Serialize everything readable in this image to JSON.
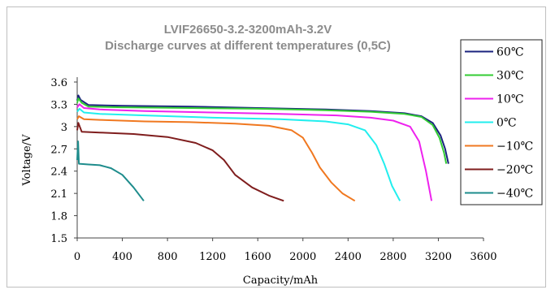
{
  "chart_data": {
    "type": "line",
    "title": "LVIF26650-3.2-3200mAh-3.2V",
    "subtitle": "Discharge curves at different temperatures (0,5C)",
    "xlabel": "Capacity/mAh",
    "ylabel": "Voltage/V",
    "xlim": [
      0,
      3600
    ],
    "ylim": [
      1.5,
      3.6
    ],
    "x_ticks": [
      "0",
      "400",
      "800",
      "1200",
      "1600",
      "2000",
      "2400",
      "2800",
      "3200",
      "3600"
    ],
    "y_ticks": [
      "1.5",
      "1.8",
      "2.1",
      "2.4",
      "2.7",
      "3",
      "3.3",
      "3.6"
    ],
    "grid": false,
    "legend_position": "right",
    "series": [
      {
        "name": "60℃",
        "color": "#1a237e",
        "points": [
          [
            0,
            3.35
          ],
          [
            10,
            3.42
          ],
          [
            30,
            3.36
          ],
          [
            100,
            3.29
          ],
          [
            400,
            3.28
          ],
          [
            1000,
            3.27
          ],
          [
            1600,
            3.25
          ],
          [
            2200,
            3.23
          ],
          [
            2600,
            3.21
          ],
          [
            2900,
            3.18
          ],
          [
            3050,
            3.14
          ],
          [
            3150,
            3.05
          ],
          [
            3220,
            2.88
          ],
          [
            3260,
            2.7
          ],
          [
            3290,
            2.5
          ]
        ]
      },
      {
        "name": "30℃",
        "color": "#33cc33",
        "points": [
          [
            0,
            3.32
          ],
          [
            10,
            3.38
          ],
          [
            40,
            3.32
          ],
          [
            100,
            3.27
          ],
          [
            400,
            3.26
          ],
          [
            1000,
            3.25
          ],
          [
            1600,
            3.24
          ],
          [
            2200,
            3.22
          ],
          [
            2600,
            3.2
          ],
          [
            2900,
            3.17
          ],
          [
            3050,
            3.13
          ],
          [
            3150,
            3.02
          ],
          [
            3210,
            2.85
          ],
          [
            3250,
            2.65
          ],
          [
            3270,
            2.5
          ]
        ]
      },
      {
        "name": "10℃",
        "color": "#ee22ee",
        "points": [
          [
            0,
            3.26
          ],
          [
            20,
            3.3
          ],
          [
            60,
            3.25
          ],
          [
            200,
            3.23
          ],
          [
            600,
            3.21
          ],
          [
            1200,
            3.19
          ],
          [
            1800,
            3.17
          ],
          [
            2300,
            3.15
          ],
          [
            2600,
            3.12
          ],
          [
            2800,
            3.08
          ],
          [
            2950,
            3.0
          ],
          [
            3030,
            2.8
          ],
          [
            3090,
            2.4
          ],
          [
            3140,
            2.0
          ]
        ]
      },
      {
        "name": "0℃",
        "color": "#22eeee",
        "points": [
          [
            0,
            3.2
          ],
          [
            20,
            3.24
          ],
          [
            60,
            3.19
          ],
          [
            200,
            3.17
          ],
          [
            600,
            3.15
          ],
          [
            1200,
            3.12
          ],
          [
            1800,
            3.1
          ],
          [
            2200,
            3.07
          ],
          [
            2400,
            3.03
          ],
          [
            2550,
            2.95
          ],
          [
            2650,
            2.75
          ],
          [
            2720,
            2.5
          ],
          [
            2790,
            2.2
          ],
          [
            2860,
            2.0
          ]
        ]
      },
      {
        "name": "−10℃",
        "color": "#f07820",
        "points": [
          [
            0,
            3.1
          ],
          [
            15,
            3.14
          ],
          [
            60,
            3.1
          ],
          [
            200,
            3.09
          ],
          [
            600,
            3.07
          ],
          [
            1000,
            3.06
          ],
          [
            1400,
            3.04
          ],
          [
            1700,
            3.01
          ],
          [
            1900,
            2.95
          ],
          [
            2000,
            2.85
          ],
          [
            2080,
            2.65
          ],
          [
            2150,
            2.45
          ],
          [
            2250,
            2.25
          ],
          [
            2350,
            2.1
          ],
          [
            2460,
            2.0
          ]
        ]
      },
      {
        "name": "−20℃",
        "color": "#7f1d1d",
        "points": [
          [
            0,
            2.95
          ],
          [
            10,
            3.05
          ],
          [
            40,
            2.93
          ],
          [
            200,
            2.92
          ],
          [
            500,
            2.9
          ],
          [
            800,
            2.86
          ],
          [
            1050,
            2.78
          ],
          [
            1200,
            2.68
          ],
          [
            1300,
            2.55
          ],
          [
            1400,
            2.35
          ],
          [
            1550,
            2.18
          ],
          [
            1700,
            2.07
          ],
          [
            1830,
            2.0
          ]
        ]
      },
      {
        "name": "−40℃",
        "color": "#1e8c8c",
        "points": [
          [
            0,
            2.55
          ],
          [
            8,
            2.8
          ],
          [
            15,
            2.5
          ],
          [
            100,
            2.49
          ],
          [
            200,
            2.48
          ],
          [
            300,
            2.44
          ],
          [
            400,
            2.35
          ],
          [
            500,
            2.18
          ],
          [
            590,
            2.0
          ]
        ]
      }
    ]
  }
}
